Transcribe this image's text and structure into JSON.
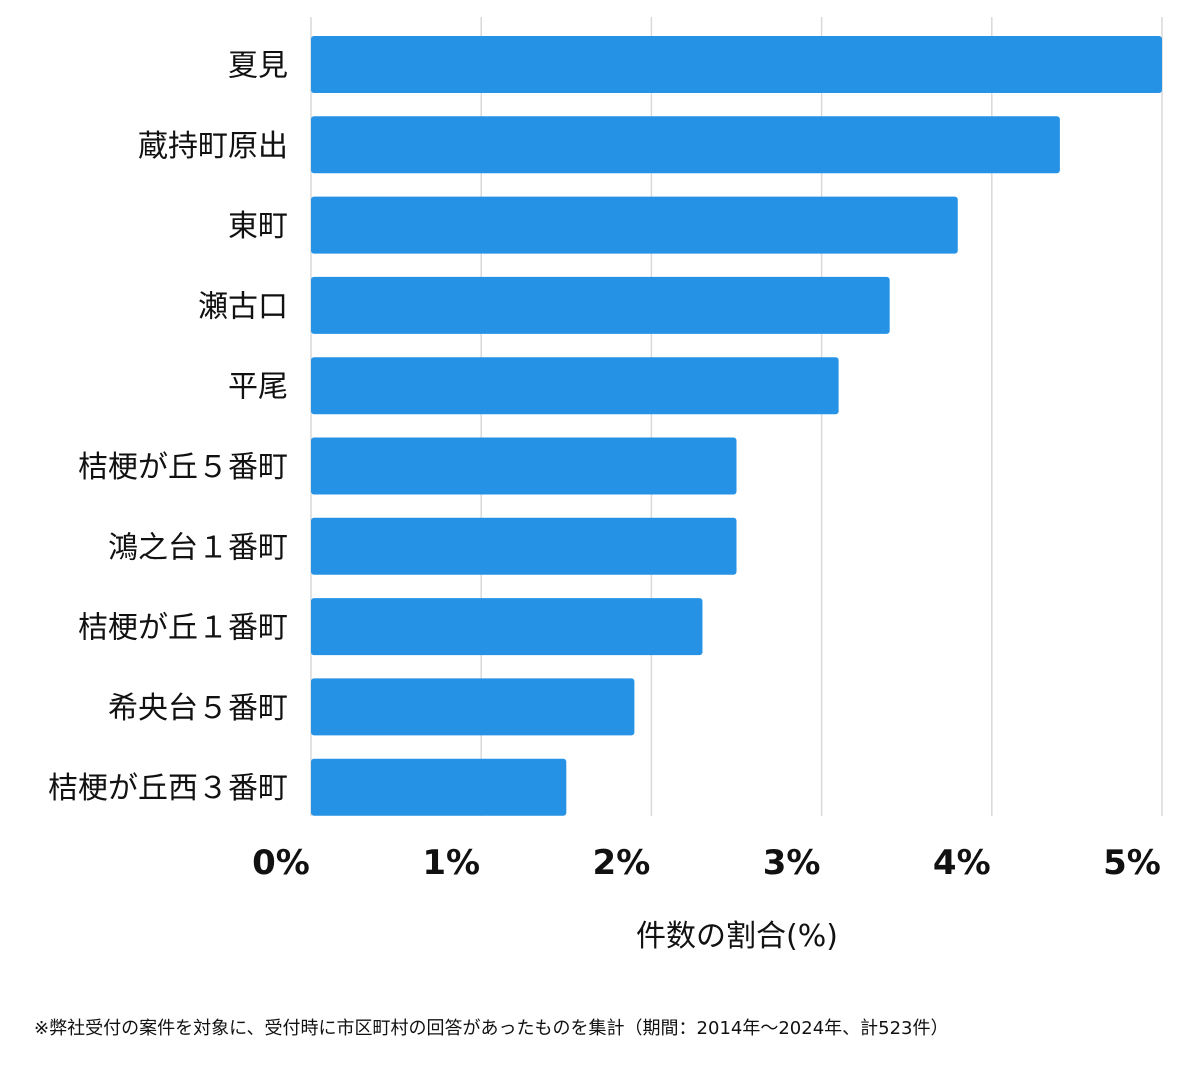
{
  "chart_data": {
    "type": "bar",
    "orientation": "horizontal",
    "categories": [
      "夏見",
      "蔵持町原出",
      "東町",
      "瀬古口",
      "平尾",
      "桔梗が丘５番町",
      "鴻之台１番町",
      "桔梗が丘１番町",
      "希央台５番町",
      "桔梗が丘西３番町"
    ],
    "values": [
      5.0,
      4.4,
      3.8,
      3.4,
      3.1,
      2.5,
      2.5,
      2.3,
      1.9,
      1.5
    ],
    "xlim": [
      0,
      5
    ],
    "xticks": [
      "0%",
      "1%",
      "2%",
      "3%",
      "4%",
      "5%"
    ],
    "xlabel": "件数の割合(%)",
    "ylabel": "",
    "title": "",
    "grid": true,
    "bar_color": "#2592e6",
    "grid_color": "#d9d9d9"
  },
  "footnote": "※弊社受付の案件を対象に、受付時に市区町村の回答があったものを集計（期間：2014年～2024年、計523件）"
}
